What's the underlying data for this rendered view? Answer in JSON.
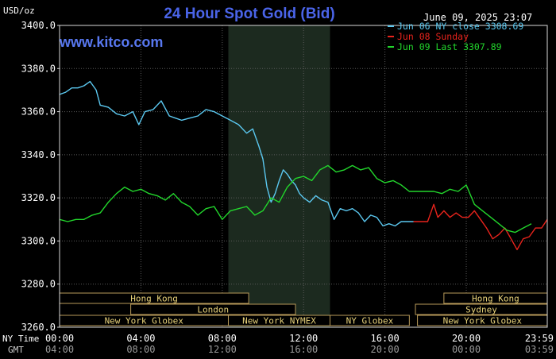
{
  "chart_data": {
    "type": "line",
    "title": "24 Hour Spot Gold (Bid)",
    "unit_label": "USD/oz",
    "watermark": "www.kitco.com",
    "timestamp": "June 09, 2025 23:07",
    "ylim": [
      3260,
      3400
    ],
    "yticks": [
      "3400.0",
      "3380.0",
      "3360.0",
      "3340.0",
      "3320.0",
      "3300.0",
      "3280.0",
      "3260.0"
    ],
    "ytick_values": [
      3400,
      3380,
      3360,
      3340,
      3320,
      3300,
      3280,
      3260
    ],
    "x_label_ny": "NY Time",
    "x_label_gmt": "GMT",
    "xticks_ny": [
      "00:00",
      "04:00",
      "08:00",
      "12:00",
      "16:00",
      "20:00",
      "23:59"
    ],
    "xticks_gmt": [
      "04:00",
      "08:00",
      "12:00",
      "16:00",
      "20:00",
      "00:00",
      "03:59"
    ],
    "xtick_hours": [
      0,
      4,
      8,
      12,
      16,
      20,
      23.983
    ],
    "xlim": [
      0,
      23.983
    ],
    "grid": true,
    "legend_position": "top-right",
    "shaded_region_hours": [
      8.3,
      13.3
    ],
    "series": [
      {
        "name": "Jun 06 NY close 3308.69",
        "color": "#5bc8f0",
        "x": [
          0,
          0.3,
          0.6,
          0.9,
          1.2,
          1.5,
          1.8,
          2.0,
          2.4,
          2.8,
          3.2,
          3.6,
          3.9,
          4.2,
          4.6,
          5.0,
          5.4,
          5.7,
          6.0,
          6.4,
          6.8,
          7.2,
          7.6,
          8.0,
          8.4,
          8.8,
          9.2,
          9.5,
          9.8,
          10.0,
          10.2,
          10.4,
          10.6,
          10.8,
          11.0,
          11.2,
          11.4,
          11.6,
          11.8,
          12.0,
          12.3,
          12.6,
          12.9,
          13.2,
          13.5,
          13.8,
          14.1,
          14.4,
          14.7,
          15.0,
          15.3,
          15.6,
          15.9,
          16.2,
          16.5,
          16.8,
          17.1,
          17.4
        ],
        "y": [
          3368,
          3369,
          3371,
          3371,
          3372,
          3374,
          3370,
          3363,
          3362,
          3359,
          3358,
          3360,
          3354,
          3360,
          3361,
          3365,
          3358,
          3357,
          3356,
          3357,
          3358,
          3361,
          3360,
          3358,
          3356,
          3354,
          3350,
          3352,
          3344,
          3338,
          3325,
          3318,
          3322,
          3328,
          3333,
          3331,
          3328,
          3326,
          3322,
          3320,
          3318,
          3321,
          3319,
          3318,
          3310,
          3315,
          3314,
          3315,
          3313,
          3309,
          3312,
          3311,
          3307,
          3308,
          3307,
          3309,
          3309,
          3309
        ]
      },
      {
        "name": "Jun 08 Sunday",
        "color": "#e8231c",
        "x": [
          17.4,
          17.8,
          18.1,
          18.4,
          18.6,
          18.9,
          19.2,
          19.5,
          19.8,
          20.1,
          20.4,
          20.7,
          21.0,
          21.3,
          21.6,
          21.9,
          22.2,
          22.5,
          22.8,
          23.1,
          23.4,
          23.7,
          23.983
        ],
        "y": [
          3309,
          3309,
          3309,
          3317,
          3311,
          3314,
          3311,
          3313,
          3311,
          3311,
          3314,
          3310,
          3306,
          3301,
          3303,
          3306,
          3301,
          3296,
          3301,
          3302,
          3306,
          3306,
          3310
        ]
      },
      {
        "name": "Jun 09 Last 3307.89",
        "color": "#22d62c",
        "x": [
          0,
          0.4,
          0.8,
          1.2,
          1.6,
          2.0,
          2.4,
          2.8,
          3.2,
          3.6,
          4.0,
          4.4,
          4.8,
          5.2,
          5.6,
          6.0,
          6.4,
          6.8,
          7.2,
          7.6,
          8.0,
          8.4,
          8.8,
          9.2,
          9.6,
          10.0,
          10.4,
          10.8,
          11.2,
          11.6,
          12.0,
          12.4,
          12.8,
          13.2,
          13.6,
          14.0,
          14.4,
          14.8,
          15.2,
          15.6,
          16.0,
          16.4,
          16.8,
          17.2,
          17.6,
          18.0,
          18.4,
          18.8,
          19.2,
          19.6,
          20.0,
          20.4,
          20.8,
          21.2,
          21.6,
          22.0,
          22.4,
          22.8,
          23.2
        ],
        "y": [
          3310,
          3309,
          3310,
          3310,
          3312,
          3313,
          3318,
          3322,
          3325,
          3323,
          3324,
          3322,
          3321,
          3319,
          3322,
          3318,
          3316,
          3312,
          3315,
          3316,
          3310,
          3314,
          3315,
          3316,
          3312,
          3314,
          3320,
          3318,
          3325,
          3329,
          3330,
          3328,
          3333,
          3335,
          3332,
          3333,
          3335,
          3333,
          3334,
          3329,
          3327,
          3328,
          3326,
          3323,
          3323,
          3323,
          3323,
          3322,
          3324,
          3323,
          3326,
          3317,
          3314,
          3311,
          3308,
          3305,
          3304,
          3306,
          3308
        ]
      }
    ],
    "markets": [
      {
        "name": "Hong Kong",
        "start": 0,
        "end": 9.3,
        "row": 0
      },
      {
        "name": "Hong Kong",
        "start": 18.9,
        "end": 23.983,
        "row": 0
      },
      {
        "name": "London",
        "start": 3.5,
        "end": 11.6,
        "row": 1
      },
      {
        "name": "Sydney",
        "start": 17.5,
        "end": 23.983,
        "row": 1
      },
      {
        "name": "New York Globex",
        "start": 0,
        "end": 8.3,
        "row": 2
      },
      {
        "name": "New York NYMEX",
        "start": 8.3,
        "end": 13.3,
        "row": 2
      },
      {
        "name": "NY Globex",
        "start": 13.3,
        "end": 17.2,
        "row": 2
      },
      {
        "name": "New York Globex",
        "start": 17.6,
        "end": 23.983,
        "row": 2
      }
    ]
  }
}
